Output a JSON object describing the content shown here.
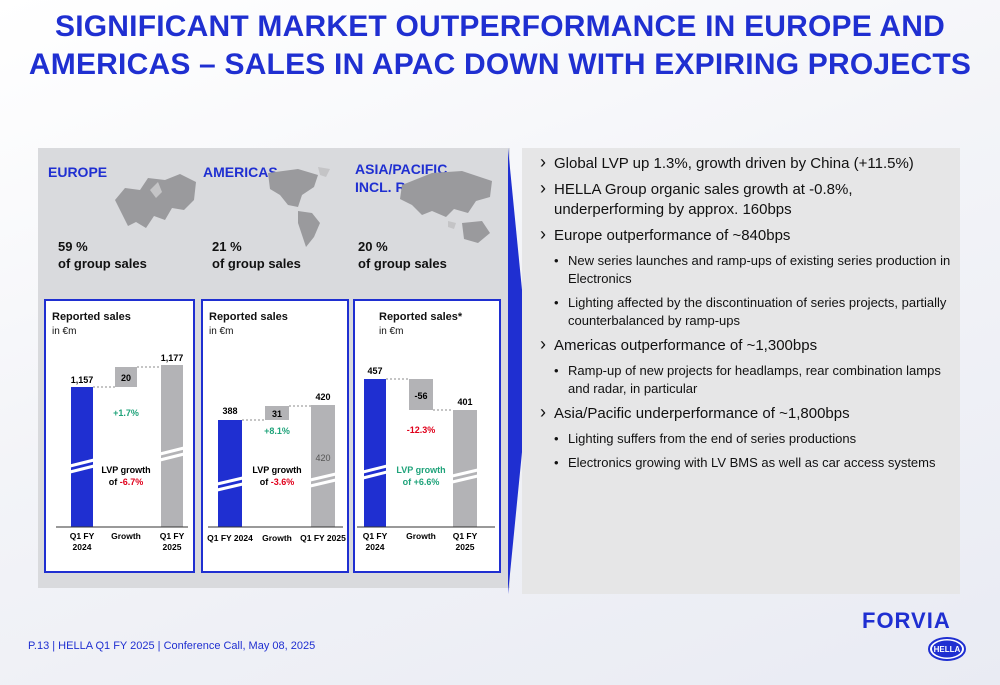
{
  "title_line1": "SIGNIFICANT MARKET OUTPERFORMANCE IN EUROPE AND",
  "title_line2": "AMERICAS – SALES IN APAC DOWN WITH EXPIRING PROJECTS",
  "regions": [
    {
      "name": "EUROPE",
      "share": "59 %",
      "share_label": "of group sales"
    },
    {
      "name": "AMERICAS",
      "share": "21 %",
      "share_label": "of group sales"
    },
    {
      "name_line1": "ASIA/PACIFIC",
      "name_line2": "INCL. ROW",
      "share": "20 %",
      "share_label": "of group sales"
    }
  ],
  "charts": [
    {
      "title": "Reported sales",
      "unit": "in €m",
      "start": "1,157",
      "growth": "20",
      "end": "1,177",
      "growth_pct": "+1.7%",
      "inner_end": "",
      "lvp_line1": "LVP growth",
      "lvp_prefix": "of ",
      "lvp_value": "-6.7%",
      "x1a": "Q1 FY",
      "x1b": "2024",
      "x2": "Growth",
      "x3a": "Q1 FY",
      "x3b": "2025"
    },
    {
      "title": "Reported sales",
      "unit": "in €m",
      "start": "388",
      "growth": "31",
      "end": "420",
      "growth_pct": "+8.1%",
      "inner_end": "420",
      "lvp_line1": "LVP growth",
      "lvp_prefix": "of ",
      "lvp_value": "-3.6%",
      "x1a": "Q1 FY 2024",
      "x2": "Growth",
      "x3a": "Q1 FY 2025"
    },
    {
      "title": "Reported sales*",
      "unit": "in €m",
      "start": "457",
      "growth": "-56",
      "end": "401",
      "growth_pct": "-12.3%",
      "inner_end": "",
      "lvp_line1": "LVP growth",
      "lvp_prefix": "of ",
      "lvp_value": "+6.6%",
      "x1a": "Q1 FY",
      "x1b": "2024",
      "x2": "Growth",
      "x3a": "Q1 FY",
      "x3b": "2025"
    }
  ],
  "bullets": [
    {
      "level": 1,
      "text": "Global LVP up 1.3%, growth driven by China (+11.5%)"
    },
    {
      "level": 1,
      "text": "HELLA Group organic sales growth at -0.8%, underperforming by approx. 160bps"
    },
    {
      "level": 1,
      "text": "Europe outperformance of ~840bps"
    },
    {
      "level": 2,
      "text": "New series launches and ramp-ups of existing series production in Electronics"
    },
    {
      "level": 2,
      "text": "Lighting affected by the discontinuation of series projects, partially counterbalanced by ramp-ups"
    },
    {
      "level": 1,
      "text": "Americas outperformance of ~1,300bps"
    },
    {
      "level": 2,
      "text": "Ramp-up of new projects for headlamps, rear combination lamps and radar, in particular"
    },
    {
      "level": 1,
      "text": "Asia/Pacific underperformance of ~1,800bps"
    },
    {
      "level": 2,
      "text": "Lighting suffers from the end of series productions"
    },
    {
      "level": 2,
      "text": "Electronics growing with LV BMS as well as car access systems"
    }
  ],
  "footer": "P.13 | HELLA Q1 FY 2025 | Conference Call, May 08, 2025",
  "logo_forvia": "FORVIA",
  "logo_hella": "HELLA",
  "colors": {
    "accent": "#1f2fd1",
    "bar_grey": "#b3b3b6",
    "positive": "#1fa37a",
    "negative": "#e0001b"
  }
}
